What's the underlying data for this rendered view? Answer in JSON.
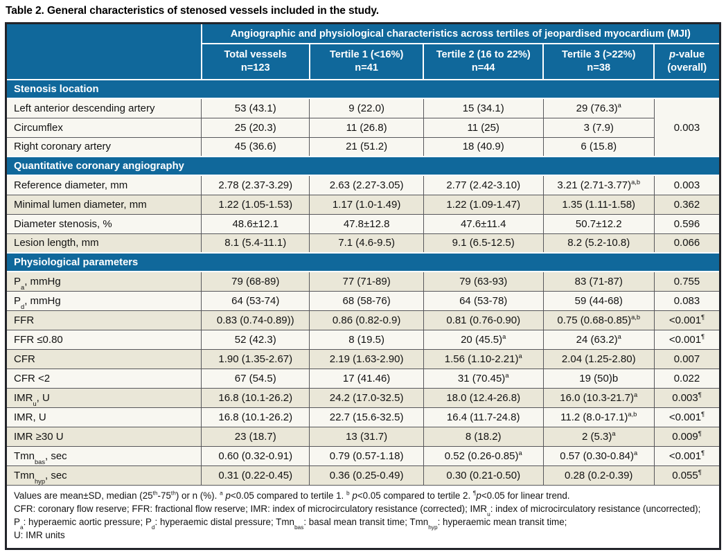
{
  "title": "Table 2. General characteristics of stenosed vessels included in the study.",
  "colors": {
    "header_blue": "#10689b",
    "row_light": "#f8f7f1",
    "row_beige": "#eae7d8",
    "grid_line": "#56565a",
    "outer_border": "#22242a"
  },
  "table": {
    "span_header": "Angiographic and physiological characteristics across tertiles of jeopardised myocardium (MJI)",
    "columns": [
      {
        "line1": "Total vessels",
        "line2": "n=123"
      },
      {
        "line1": "Tertile 1 (<16%)",
        "line2": "n=41"
      },
      {
        "line1": "Tertile 2 (16 to 22%)",
        "line2": "n=44"
      },
      {
        "line1": "Tertile 3 (>22%)",
        "line2": "n=38"
      },
      {
        "line1_italic": "p",
        "line1_rest": "-value",
        "line2": "(overall)"
      }
    ],
    "sections": [
      {
        "header": "Stenosis location",
        "merged_p": "0.003",
        "rows": [
          {
            "label": [
              [
                "",
                "Left anterior descending artery"
              ]
            ],
            "shade": 0,
            "cells": [
              {
                "t": "53 (43.1)"
              },
              {
                "t": "9 (22.0)"
              },
              {
                "t": "15 (34.1)"
              },
              {
                "t": "29 (76.3)",
                "sup": "a"
              }
            ]
          },
          {
            "label": [
              [
                "",
                "Circumflex"
              ]
            ],
            "shade": 0,
            "cells": [
              {
                "t": "25 (20.3)"
              },
              {
                "t": "11 (26.8)"
              },
              {
                "t": "11 (25)"
              },
              {
                "t": "3 (7.9)"
              }
            ]
          },
          {
            "label": [
              [
                "",
                "Right coronary artery"
              ]
            ],
            "shade": 0,
            "cells": [
              {
                "t": "45 (36.6)"
              },
              {
                "t": "21 (51.2)"
              },
              {
                "t": "18 (40.9)"
              },
              {
                "t": "6 (15.8)"
              }
            ]
          }
        ]
      },
      {
        "header": "Quantitative coronary angiography",
        "rows": [
          {
            "label": [
              [
                "",
                "Reference diameter, mm"
              ]
            ],
            "shade": 0,
            "cells": [
              {
                "t": "2.78 (2.37-3.29)"
              },
              {
                "t": "2.63 (2.27-3.05)"
              },
              {
                "t": "2.77 (2.42-3.10)"
              },
              {
                "t": "3.21 (2.71-3.77)",
                "sup": "a,b"
              },
              {
                "t": "0.003"
              }
            ]
          },
          {
            "label": [
              [
                "",
                "Minimal lumen diameter, mm"
              ]
            ],
            "shade": 1,
            "cells": [
              {
                "t": "1.22 (1.05-1.53)"
              },
              {
                "t": "1.17 (1.0-1.49)"
              },
              {
                "t": "1.22 (1.09-1.47)"
              },
              {
                "t": "1.35 (1.11-1.58)"
              },
              {
                "t": "0.362"
              }
            ]
          },
          {
            "label": [
              [
                "",
                "Diameter stenosis, %"
              ]
            ],
            "shade": 0,
            "cells": [
              {
                "t": "48.6±12.1"
              },
              {
                "t": "47.8±12.8"
              },
              {
                "t": "47.6±11.4"
              },
              {
                "t": "50.7±12.2"
              },
              {
                "t": "0.596"
              }
            ]
          },
          {
            "label": [
              [
                "",
                "Lesion length, mm"
              ]
            ],
            "shade": 1,
            "cells": [
              {
                "t": "8.1 (5.4-11.1)"
              },
              {
                "t": "7.1 (4.6-9.5)"
              },
              {
                "t": "9.1 (6.5-12.5)"
              },
              {
                "t": "8.2 (5.2-10.8)"
              },
              {
                "t": "0.066"
              }
            ]
          }
        ]
      },
      {
        "header": "Physiological parameters",
        "rows": [
          {
            "label": [
              [
                "",
                "P"
              ],
              [
                "sub",
                "a"
              ],
              [
                "",
                ", mmHg"
              ]
            ],
            "shade": 1,
            "cells": [
              {
                "t": "79 (68-89)"
              },
              {
                "t": "77 (71-89)"
              },
              {
                "t": "79 (63-93)"
              },
              {
                "t": "83 (71-87)"
              },
              {
                "t": "0.755"
              }
            ]
          },
          {
            "label": [
              [
                "",
                "P"
              ],
              [
                "sub",
                "d"
              ],
              [
                "",
                ", mmHg"
              ]
            ],
            "shade": 0,
            "cells": [
              {
                "t": "64 (53-74)"
              },
              {
                "t": "68 (58-76)"
              },
              {
                "t": "64 (53-78)"
              },
              {
                "t": "59 (44-68)"
              },
              {
                "t": "0.083"
              }
            ]
          },
          {
            "label": [
              [
                "",
                "FFR"
              ]
            ],
            "shade": 1,
            "cells": [
              {
                "t": "0.83 (0.74-0.89))"
              },
              {
                "t": "0.86 (0.82-0.9)"
              },
              {
                "t": "0.81 (0.76-0.90)"
              },
              {
                "t": "0.75 (0.68-0.85)",
                "sup": "a,b"
              },
              {
                "t": "<0.001",
                "sup": "¶"
              }
            ]
          },
          {
            "label": [
              [
                "",
                "FFR ≤0.80"
              ]
            ],
            "shade": 0,
            "cells": [
              {
                "t": "52 (42.3)"
              },
              {
                "t": "8 (19.5)"
              },
              {
                "t": "20 (45.5)",
                "sup": "a"
              },
              {
                "t": "24 (63.2)",
                "sup": "a"
              },
              {
                "t": "<0.001",
                "sup": "¶"
              }
            ]
          },
          {
            "label": [
              [
                "",
                "CFR"
              ]
            ],
            "shade": 1,
            "cells": [
              {
                "t": "1.90 (1.35-2.67)"
              },
              {
                "t": "2.19 (1.63-2.90)"
              },
              {
                "t": "1.56 (1.10-2.21)",
                "sup": "a"
              },
              {
                "t": "2.04 (1.25-2.80)"
              },
              {
                "t": "0.007"
              }
            ]
          },
          {
            "label": [
              [
                "",
                "CFR <2"
              ]
            ],
            "shade": 0,
            "cells": [
              {
                "t": "67 (54.5)"
              },
              {
                "t": "17 (41.46)"
              },
              {
                "t": "31 (70.45)",
                "sup": "a"
              },
              {
                "t": "19 (50)b"
              },
              {
                "t": "0.022"
              }
            ]
          },
          {
            "label": [
              [
                "",
                "IMR"
              ],
              [
                "sub",
                "u"
              ],
              [
                "",
                ", U"
              ]
            ],
            "shade": 1,
            "cells": [
              {
                "t": "16.8 (10.1-26.2)"
              },
              {
                "t": "24.2 (17.0-32.5)"
              },
              {
                "t": "18.0 (12.4-26.8)"
              },
              {
                "t": "16.0 (10.3-21.7)",
                "sup": "a"
              },
              {
                "t": "0.003",
                "sup": "¶"
              }
            ]
          },
          {
            "label": [
              [
                "",
                "IMR, U"
              ]
            ],
            "shade": 0,
            "cells": [
              {
                "t": "16.8 (10.1-26.2)"
              },
              {
                "t": "22.7 (15.6-32.5)"
              },
              {
                "t": "16.4 (11.7-24.8)"
              },
              {
                "t": "11.2 (8.0-17.1)",
                "sup": "a,b"
              },
              {
                "t": "<0.001",
                "sup": "¶"
              }
            ]
          },
          {
            "label": [
              [
                "",
                "IMR ≥30 U"
              ]
            ],
            "shade": 1,
            "cells": [
              {
                "t": "23 (18.7)"
              },
              {
                "t": "13 (31.7)"
              },
              {
                "t": "8 (18.2)"
              },
              {
                "t": "2 (5.3)",
                "sup": "a"
              },
              {
                "t": "0.009",
                "sup": "¶"
              }
            ]
          },
          {
            "label": [
              [
                "",
                "Tmn"
              ],
              [
                "sub",
                "bas"
              ],
              [
                "",
                ", sec"
              ]
            ],
            "shade": 0,
            "cells": [
              {
                "t": "0.60 (0.32-0.91)"
              },
              {
                "t": "0.79 (0.57-1.18)"
              },
              {
                "t": "0.52 (0.26-0.85)",
                "sup": "a"
              },
              {
                "t": "0.57 (0.30-0.84)",
                "sup": "a"
              },
              {
                "t": "<0.001",
                "sup": "¶"
              }
            ]
          },
          {
            "label": [
              [
                "",
                "Tmn"
              ],
              [
                "sub",
                "hyp"
              ],
              [
                "",
                ", sec"
              ]
            ],
            "shade": 1,
            "cells": [
              {
                "t": "0.31 (0.22-0.45)"
              },
              {
                "t": "0.36 (0.25-0.49)"
              },
              {
                "t": "0.30 (0.21-0.50)"
              },
              {
                "t": "0.28 (0.2-0.39)"
              },
              {
                "t": "0.055",
                "sup": "¶"
              }
            ]
          }
        ]
      }
    ]
  },
  "footnote": {
    "tokens": [
      [
        "",
        "Values are mean±SD, median (25"
      ],
      [
        "sup",
        "th"
      ],
      [
        "",
        "-75"
      ],
      [
        "sup",
        "th"
      ],
      [
        "",
        ") or n (%). "
      ],
      [
        "sup",
        "a"
      ],
      [
        "",
        " "
      ],
      [
        "i",
        "p"
      ],
      [
        "",
        "<0.05 compared to tertile 1. "
      ],
      [
        "sup",
        "b"
      ],
      [
        "",
        " "
      ],
      [
        "i",
        "p"
      ],
      [
        "",
        "<0.05 compared to tertile 2. "
      ],
      [
        "sup",
        "¶"
      ],
      [
        "i",
        "p"
      ],
      [
        "",
        "<0.05 for linear trend."
      ],
      [
        "br",
        ""
      ],
      [
        "",
        "CFR: coronary flow reserve; FFR: fractional flow reserve; IMR: index of microcirculatory resistance (corrected); IMR"
      ],
      [
        "sub",
        "u"
      ],
      [
        "",
        ": index of microcirculatory resistance (uncorrected); P"
      ],
      [
        "sub",
        "a"
      ],
      [
        "",
        ": hyperaemic aortic pressure; P"
      ],
      [
        "sub",
        "d"
      ],
      [
        "",
        ": hyperaemic distal pressure; Tmn"
      ],
      [
        "sub",
        "bas"
      ],
      [
        "",
        ": basal mean transit time; Tmn"
      ],
      [
        "sub",
        "hyp"
      ],
      [
        "",
        ": hyperaemic mean transit time;"
      ],
      [
        "br",
        ""
      ],
      [
        "",
        "U: IMR units"
      ]
    ]
  }
}
